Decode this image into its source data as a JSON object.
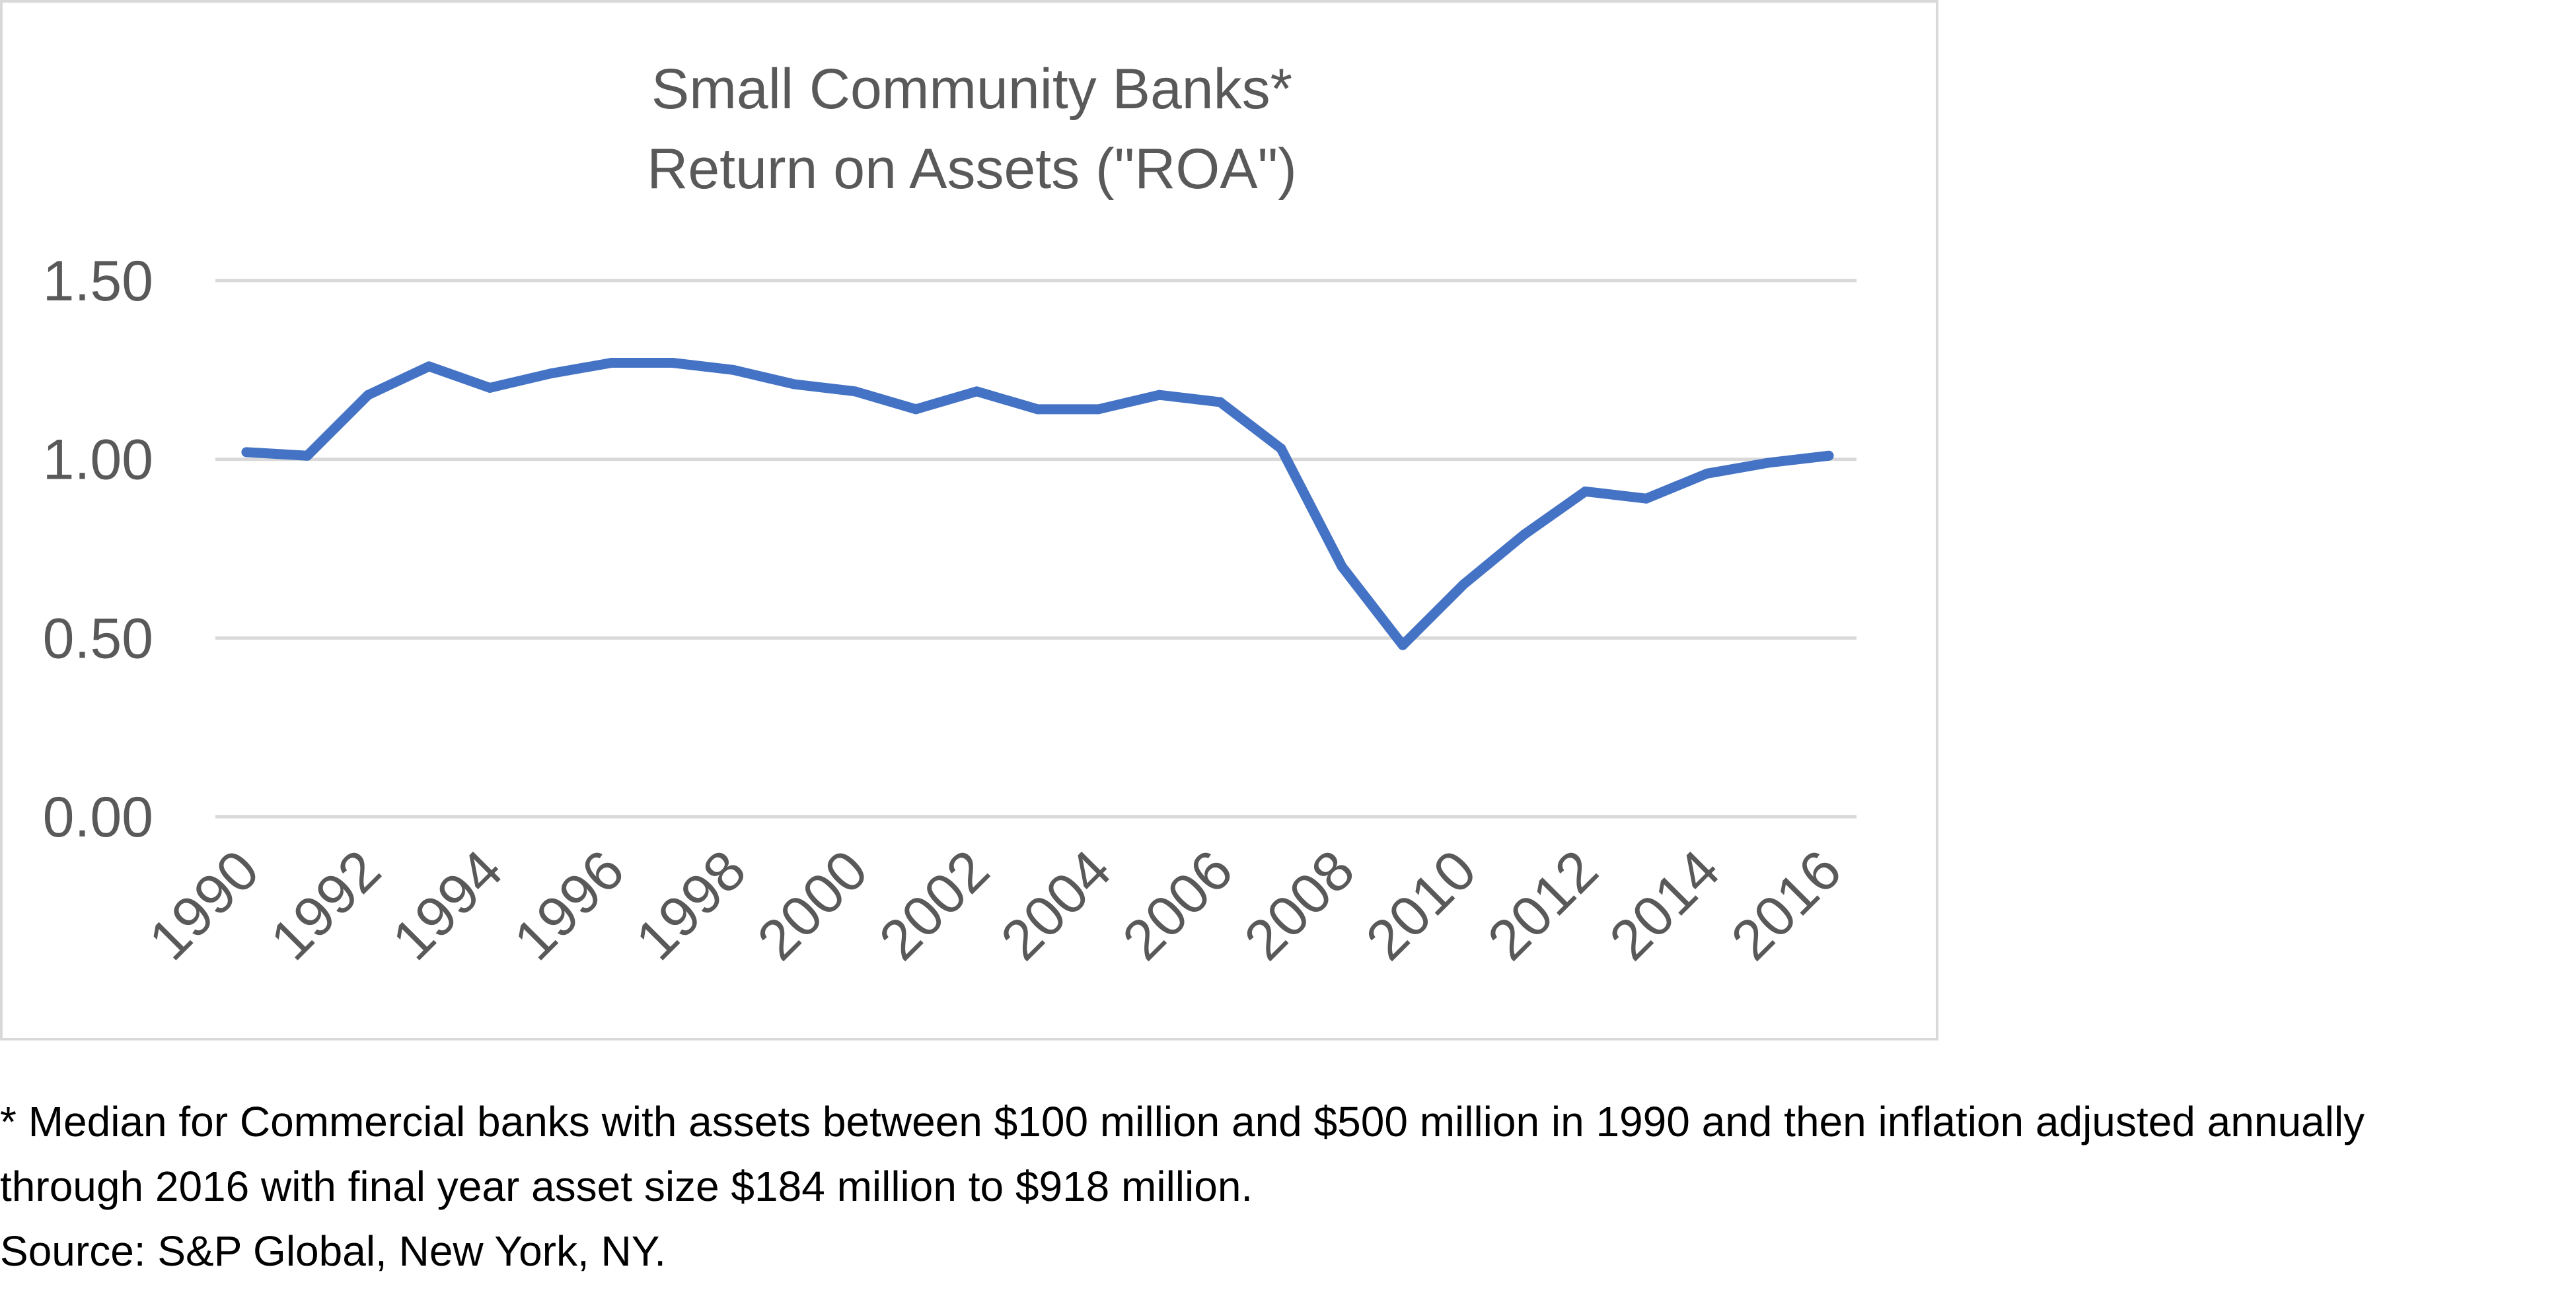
{
  "chart_data": {
    "type": "line",
    "title": [
      "Small Community Banks*",
      "Return on Assets (\"ROA\")"
    ],
    "xlabel": "",
    "ylabel": "",
    "x": [
      1990,
      1991,
      1992,
      1993,
      1994,
      1995,
      1996,
      1997,
      1998,
      1999,
      2000,
      2001,
      2002,
      2003,
      2004,
      2005,
      2006,
      2007,
      2008,
      2009,
      2010,
      2011,
      2012,
      2013,
      2014,
      2015,
      2016
    ],
    "x_tick_labels": [
      "1990",
      "1992",
      "1994",
      "1996",
      "1998",
      "2000",
      "2002",
      "2004",
      "2006",
      "2008",
      "2010",
      "2012",
      "2014",
      "2016"
    ],
    "y_tick_labels": [
      "1.50",
      "1.00",
      "0.50",
      "0.00"
    ],
    "ylim": [
      0,
      1.5
    ],
    "grid": true,
    "legend": "none",
    "series": [
      {
        "color": "#4472c4",
        "values": [
          1.02,
          1.01,
          1.18,
          1.26,
          1.2,
          1.24,
          1.27,
          1.27,
          1.25,
          1.21,
          1.19,
          1.14,
          1.19,
          1.14,
          1.14,
          1.18,
          1.16,
          1.03,
          0.7,
          0.48,
          0.65,
          0.79,
          0.91,
          0.89,
          0.96,
          0.99,
          1.01
        ]
      }
    ]
  },
  "footnote": {
    "line1": "* Median for Commercial banks with assets between $100 million and $500 million in 1990 and then inflation adjusted annually",
    "line2": "through 2016 with final year asset size $184 million to $918 million.",
    "source": "Source: S&P Global, New York, NY."
  }
}
